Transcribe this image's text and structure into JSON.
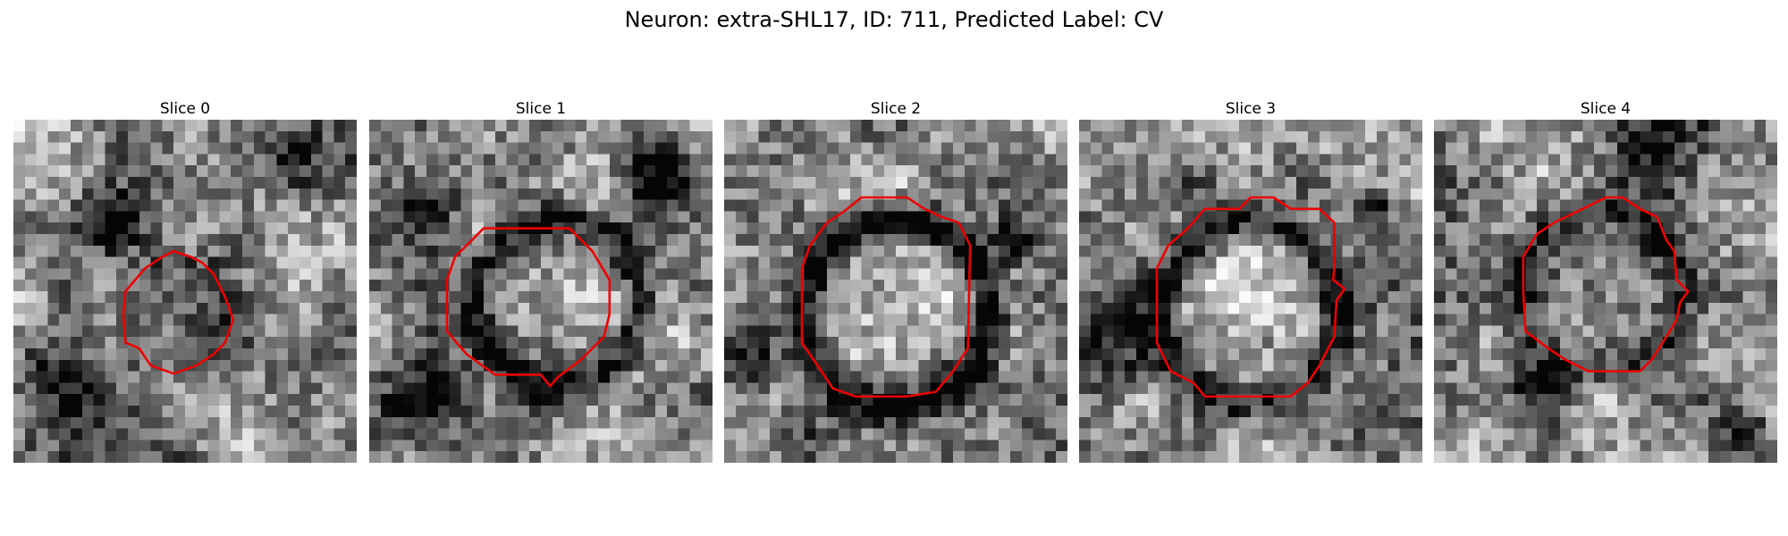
{
  "title": "Neuron: extra-SHL17, ID: 711, Predicted Label: CV",
  "colors": {
    "contour": "#ee0000",
    "background": "#ffffff"
  },
  "panels": [
    {
      "title": "Slice 0"
    },
    {
      "title": "Slice 1"
    },
    {
      "title": "Slice 2"
    },
    {
      "title": "Slice 3"
    },
    {
      "title": "Slice 4"
    }
  ]
}
